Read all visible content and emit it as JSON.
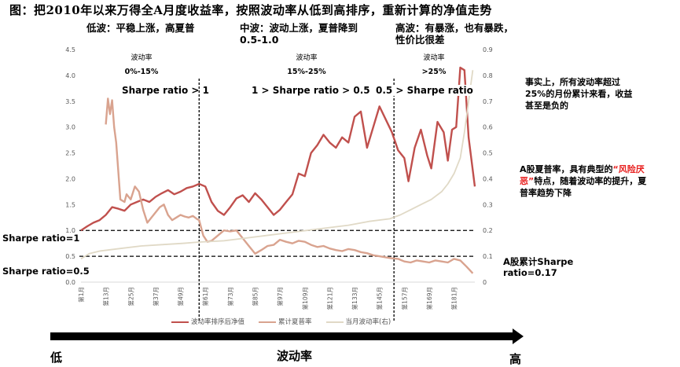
{
  "title": "图：把2010年以来万得全A月度收益率，按照波动率从低到高排序，重新计算的净值走势",
  "zones": [
    {
      "head": "低波：平稳上涨，高夏普",
      "vol_label": "波动率",
      "vol_range": "0%-15%",
      "regime": "Sharpe ratio > 1"
    },
    {
      "head": "中波：波动上涨，夏普降到0.5-1.0",
      "vol_label": "波动率",
      "vol_range": "15%-25%",
      "regime": "1 > Sharpe ratio > 0.5"
    },
    {
      "head": "高波：有暴涨，也有暴跌，性价比很差",
      "vol_label": "波动率",
      "vol_range": ">25%",
      "regime": "0.5 > Sharpe ratio"
    }
  ],
  "reference_lines": {
    "sharpe_1": "Sharpe ratio=1",
    "sharpe_05": "Sharpe ratio=0.5",
    "a_share": "A股累计Sharpe ratio=0.17"
  },
  "notes": {
    "note1": "事实上，所有波动率超过25%的月份累计来看，收益甚至是负的",
    "note2_pre": "A股夏普率，具有典型的",
    "note2_highlight": "“风险厌恶”",
    "note2_post": "特点，随着波动率的提升，夏普率趋势下降"
  },
  "axis_arrow": {
    "low": "低",
    "mid": "波动率",
    "high": "高"
  },
  "colors": {
    "nav": "#c0504d",
    "sharpe": "#d9a38f",
    "vol": "#e0d9c6",
    "highlight": "#e8201f"
  },
  "chart_data": {
    "type": "line",
    "title": "",
    "x_label": "",
    "x_ticks": [
      "第1月",
      "第13月",
      "第25月",
      "第37月",
      "第49月",
      "第61月",
      "第73月",
      "第85月",
      "第97月",
      "第109月",
      "第121月",
      "第133月",
      "第145月",
      "第157月",
      "第169月",
      "第181月"
    ],
    "y_left": {
      "range": [
        0,
        4.5
      ],
      "ticks": [
        "0.0",
        "0.5",
        "1.0",
        "1.5",
        "2.0",
        "2.5",
        "3.0",
        "3.5",
        "4.0",
        "4.5"
      ]
    },
    "y_right": {
      "range": [
        0,
        0.9
      ],
      "ticks": [
        "0",
        "0.1",
        "0.2",
        "0.3",
        "0.4",
        "0.5",
        "0.6",
        "0.7",
        "0.8",
        "0.9"
      ]
    },
    "dividers_month": [
      58,
      152
    ],
    "hlines_left": [
      1.0,
      0.5
    ],
    "legend": [
      "波动率排序后净值",
      "累计夏普率",
      "当月波动率(右)"
    ],
    "legend_position": "bottom",
    "series": [
      {
        "name": "波动率排序后净值",
        "axis": "left",
        "x": [
          1,
          4,
          7,
          10,
          13,
          16,
          19,
          22,
          25,
          28,
          31,
          34,
          37,
          40,
          43,
          46,
          49,
          52,
          55,
          58,
          61,
          64,
          67,
          70,
          73,
          76,
          79,
          82,
          85,
          88,
          91,
          94,
          97,
          100,
          103,
          106,
          109,
          112,
          115,
          118,
          121,
          124,
          127,
          130,
          133,
          136,
          139,
          142,
          145,
          148,
          151,
          154,
          157,
          159,
          162,
          165,
          168,
          170,
          173,
          176,
          178,
          180,
          182,
          184,
          186,
          188,
          191
        ],
        "y": [
          1.0,
          1.08,
          1.15,
          1.2,
          1.3,
          1.45,
          1.42,
          1.38,
          1.5,
          1.55,
          1.6,
          1.55,
          1.65,
          1.72,
          1.78,
          1.7,
          1.75,
          1.82,
          1.85,
          1.9,
          1.85,
          1.55,
          1.38,
          1.3,
          1.45,
          1.62,
          1.68,
          1.55,
          1.72,
          1.6,
          1.45,
          1.3,
          1.4,
          1.55,
          1.7,
          2.1,
          2.05,
          2.5,
          2.65,
          2.85,
          2.7,
          2.6,
          2.8,
          2.7,
          3.2,
          3.3,
          2.6,
          3.0,
          3.4,
          3.15,
          2.9,
          2.55,
          2.4,
          1.95,
          2.6,
          2.95,
          2.45,
          2.2,
          3.1,
          2.9,
          2.35,
          2.95,
          3.0,
          4.15,
          4.1,
          2.8,
          1.85
        ]
      },
      {
        "name": "累计夏普率",
        "axis": "left",
        "x": [
          13,
          14,
          15,
          16,
          17,
          18,
          20,
          22,
          23,
          25,
          27,
          29,
          31,
          33,
          35,
          37,
          39,
          41,
          43,
          45,
          47,
          49,
          51,
          53,
          55,
          57,
          58,
          60,
          62,
          64,
          67,
          70,
          73,
          76,
          79,
          82,
          85,
          88,
          91,
          94,
          97,
          100,
          103,
          106,
          109,
          112,
          115,
          118,
          121,
          124,
          127,
          130,
          133,
          136,
          139,
          142,
          145,
          148,
          151,
          154,
          157,
          160,
          163,
          166,
          169,
          172,
          175,
          178,
          181,
          184,
          187,
          190
        ],
        "y": [
          3.05,
          3.55,
          3.25,
          3.52,
          3.0,
          2.7,
          1.6,
          1.55,
          1.7,
          1.6,
          1.85,
          1.75,
          1.4,
          1.15,
          1.25,
          1.35,
          1.45,
          1.5,
          1.3,
          1.2,
          1.25,
          1.3,
          1.27,
          1.25,
          1.28,
          1.22,
          1.2,
          0.9,
          0.78,
          0.8,
          0.9,
          1.0,
          0.98,
          1.0,
          0.85,
          0.7,
          0.55,
          0.62,
          0.7,
          0.72,
          0.82,
          0.78,
          0.75,
          0.8,
          0.78,
          0.72,
          0.68,
          0.7,
          0.65,
          0.62,
          0.6,
          0.64,
          0.62,
          0.58,
          0.56,
          0.52,
          0.5,
          0.48,
          0.46,
          0.45,
          0.4,
          0.38,
          0.42,
          0.4,
          0.38,
          0.42,
          0.4,
          0.38,
          0.45,
          0.42,
          0.3,
          0.17
        ]
      },
      {
        "name": "当月波动率(右)",
        "axis": "right",
        "x": [
          1,
          5,
          10,
          20,
          30,
          40,
          50,
          58,
          70,
          80,
          90,
          100,
          110,
          120,
          130,
          140,
          150,
          155,
          160,
          165,
          170,
          175,
          178,
          181,
          184,
          186,
          188,
          190
        ],
        "y": [
          0.09,
          0.11,
          0.12,
          0.13,
          0.14,
          0.145,
          0.15,
          0.155,
          0.16,
          0.17,
          0.18,
          0.19,
          0.2,
          0.21,
          0.22,
          0.235,
          0.245,
          0.26,
          0.28,
          0.3,
          0.32,
          0.35,
          0.38,
          0.42,
          0.48,
          0.58,
          0.7,
          0.82
        ]
      }
    ]
  }
}
